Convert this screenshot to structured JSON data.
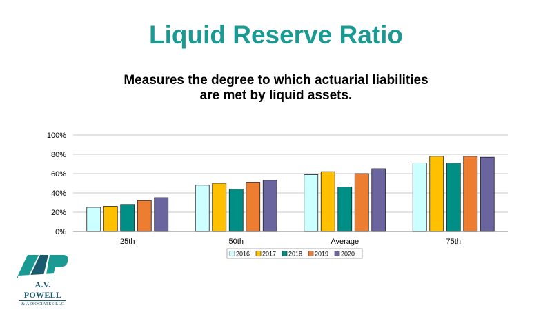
{
  "title": "Liquid Reserve Ratio",
  "subtitle_lines": [
    "Measures the degree to which actuarial liabilities",
    "are met by liquid assets."
  ],
  "logo": {
    "name": "A.V. POWELL",
    "sub": "& ASSOCIATES LLC",
    "monogram": "AVP"
  },
  "colors": {
    "title": "#1a9a93",
    "logo": "#1a5a6e"
  },
  "chart_data": {
    "type": "bar",
    "categories": [
      "25th",
      "50th",
      "Average",
      "75th"
    ],
    "series": [
      {
        "name": "2016",
        "color": "#ccffff",
        "values": [
          25,
          48,
          59,
          71
        ]
      },
      {
        "name": "2017",
        "color": "#ffc000",
        "values": [
          26,
          50,
          62,
          78
        ]
      },
      {
        "name": "2018",
        "color": "#008f86",
        "values": [
          28,
          44,
          46,
          71
        ]
      },
      {
        "name": "2019",
        "color": "#ed7d31",
        "values": [
          32,
          51,
          60,
          78
        ]
      },
      {
        "name": "2020",
        "color": "#6a659e",
        "values": [
          35,
          53,
          65,
          77
        ]
      }
    ],
    "ylim": [
      0,
      100
    ],
    "yticks": [
      "0%",
      "20%",
      "40%",
      "60%",
      "80%",
      "100%"
    ],
    "xlabel": "",
    "ylabel": "",
    "grid": true,
    "legend_position": "bottom"
  }
}
